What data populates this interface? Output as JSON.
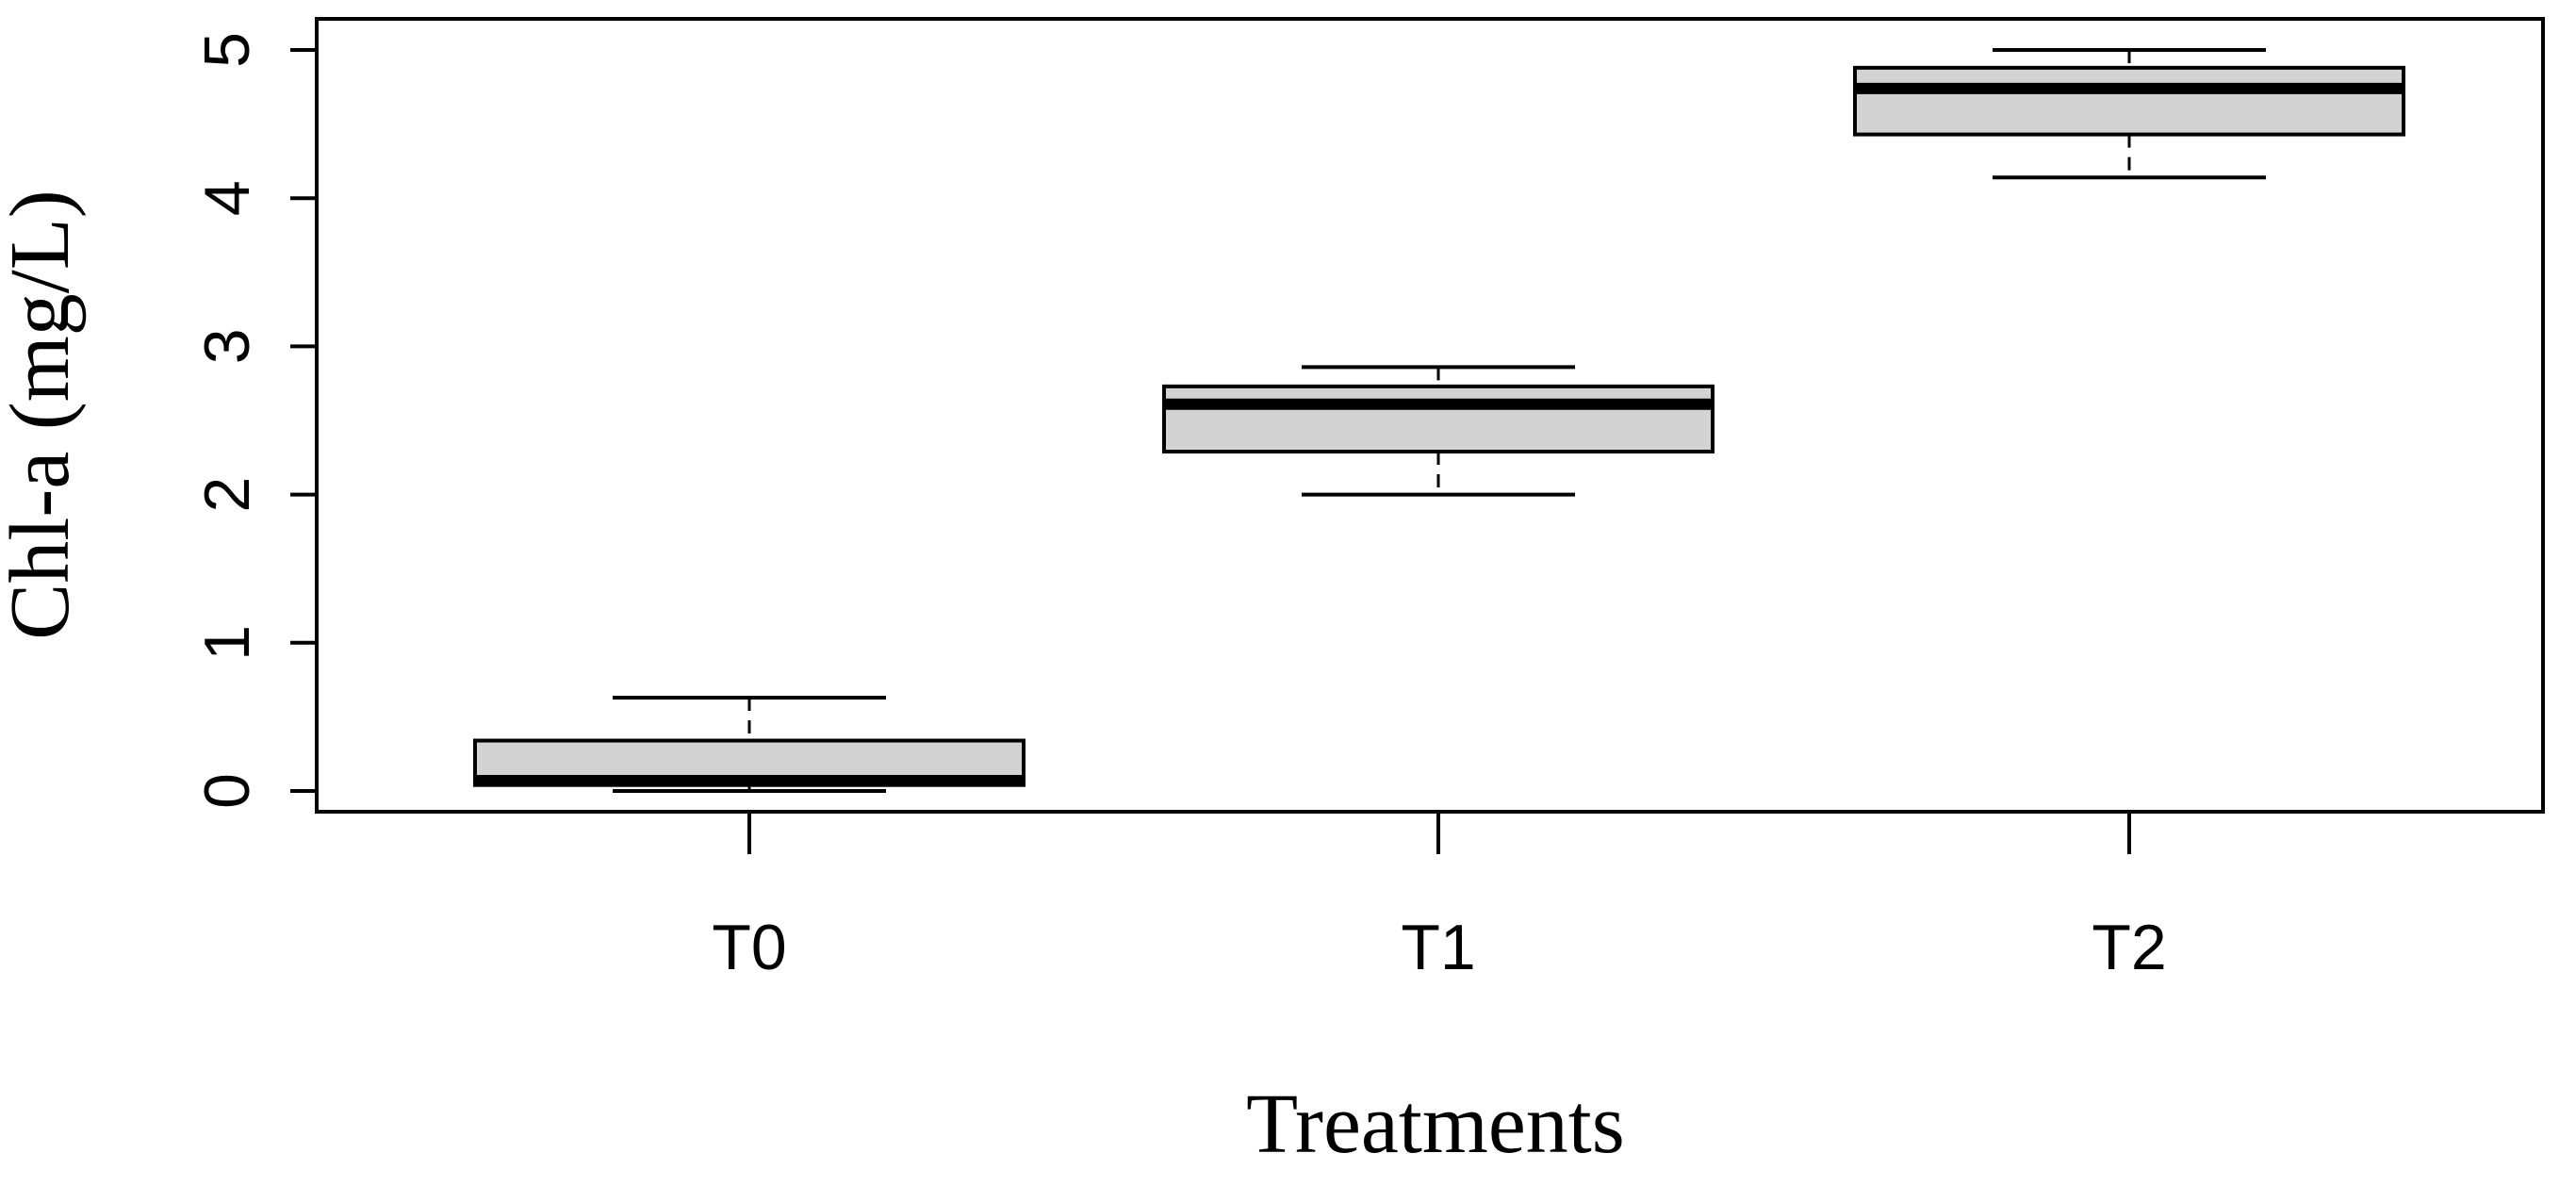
{
  "chart_data": {
    "type": "boxplot",
    "title": "",
    "xlabel": "Treatments",
    "ylabel": "Chl-a (mg/L)",
    "categories": [
      "T0",
      "T1",
      "T2"
    ],
    "boxes": [
      {
        "name": "T0",
        "min": 0.0,
        "q1": 0.04,
        "median": 0.07,
        "q3": 0.34,
        "max": 0.63
      },
      {
        "name": "T1",
        "min": 2.0,
        "q1": 2.29,
        "median": 2.61,
        "q3": 2.73,
        "max": 2.86
      },
      {
        "name": "T2",
        "min": 4.14,
        "q1": 4.43,
        "median": 4.74,
        "q3": 4.88,
        "max": 5.0
      }
    ],
    "ylim": [
      -0.14,
      5.21
    ],
    "yticks": [
      0,
      1,
      2,
      3,
      4,
      5
    ],
    "grid": false,
    "colors": {
      "box_fill": "#d3d3d3",
      "line": "#000000",
      "background": "#ffffff"
    }
  }
}
